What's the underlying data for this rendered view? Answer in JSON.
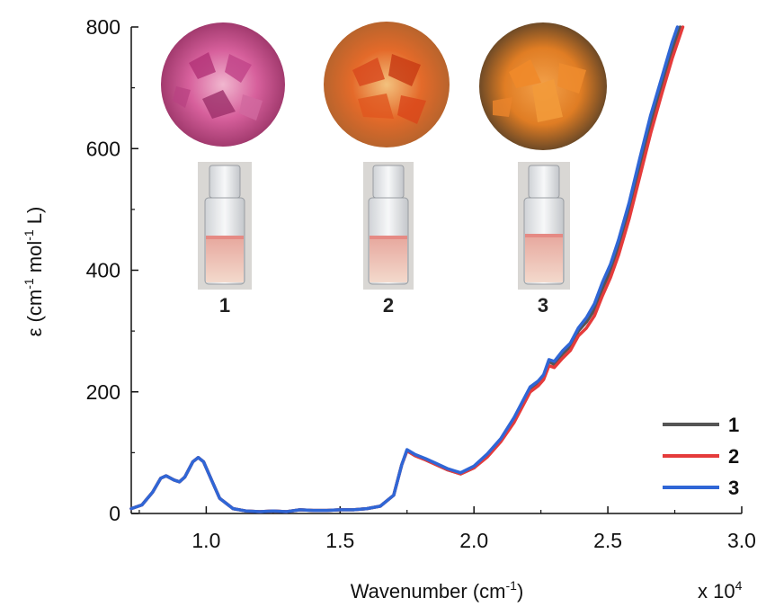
{
  "chart_data": {
    "type": "line",
    "xlabel_text": "Wavenumber (cm",
    "xlabel_sup": "-1",
    "xlabel_close": ")",
    "x_multiplier_text": "x 10",
    "x_multiplier_exp": "4",
    "ylabel_parts": [
      "ε (cm",
      "-1",
      " mol",
      "-1",
      " L)"
    ],
    "xlim": [
      0.72,
      3.0
    ],
    "ylim": [
      0,
      800
    ],
    "x_ticks": [
      1.0,
      1.5,
      2.0,
      2.5,
      3.0
    ],
    "x_tick_labels": [
      "1.0",
      "1.5",
      "2.0",
      "2.5",
      "3.0"
    ],
    "y_ticks": [
      0,
      200,
      400,
      600,
      800
    ],
    "y_tick_labels": [
      "0",
      "200",
      "400",
      "600",
      "800"
    ],
    "legend_placement": "bottom-right",
    "series": [
      {
        "name": "1",
        "color": "#555555",
        "points": [
          [
            0.72,
            8
          ],
          [
            0.76,
            14
          ],
          [
            0.8,
            35
          ],
          [
            0.83,
            58
          ],
          [
            0.85,
            62
          ],
          [
            0.88,
            55
          ],
          [
            0.9,
            52
          ],
          [
            0.92,
            60
          ],
          [
            0.95,
            85
          ],
          [
            0.97,
            92
          ],
          [
            0.99,
            85
          ],
          [
            1.02,
            55
          ],
          [
            1.05,
            25
          ],
          [
            1.1,
            8
          ],
          [
            1.15,
            4
          ],
          [
            1.2,
            3
          ],
          [
            1.25,
            4
          ],
          [
            1.3,
            3
          ],
          [
            1.35,
            6
          ],
          [
            1.4,
            5
          ],
          [
            1.45,
            5
          ],
          [
            1.5,
            6
          ],
          [
            1.55,
            6
          ],
          [
            1.6,
            8
          ],
          [
            1.65,
            12
          ],
          [
            1.7,
            30
          ],
          [
            1.73,
            80
          ],
          [
            1.75,
            103
          ],
          [
            1.78,
            95
          ],
          [
            1.82,
            88
          ],
          [
            1.86,
            80
          ],
          [
            1.9,
            72
          ],
          [
            1.95,
            65
          ],
          [
            2.0,
            75
          ],
          [
            2.05,
            95
          ],
          [
            2.1,
            120
          ],
          [
            2.15,
            155
          ],
          [
            2.18,
            180
          ],
          [
            2.21,
            205
          ],
          [
            2.24,
            215
          ],
          [
            2.26,
            225
          ],
          [
            2.28,
            250
          ],
          [
            2.3,
            245
          ],
          [
            2.33,
            262
          ],
          [
            2.36,
            275
          ],
          [
            2.39,
            300
          ],
          [
            2.42,
            315
          ],
          [
            2.45,
            335
          ],
          [
            2.48,
            370
          ],
          [
            2.51,
            400
          ],
          [
            2.54,
            440
          ],
          [
            2.58,
            500
          ],
          [
            2.62,
            570
          ],
          [
            2.66,
            640
          ],
          [
            2.7,
            700
          ],
          [
            2.74,
            760
          ],
          [
            2.77,
            800
          ]
        ]
      },
      {
        "name": "2",
        "color": "#e53b3b",
        "points": [
          [
            0.72,
            8
          ],
          [
            0.76,
            14
          ],
          [
            0.8,
            35
          ],
          [
            0.83,
            58
          ],
          [
            0.85,
            62
          ],
          [
            0.88,
            55
          ],
          [
            0.9,
            52
          ],
          [
            0.92,
            60
          ],
          [
            0.95,
            85
          ],
          [
            0.97,
            92
          ],
          [
            0.99,
            85
          ],
          [
            1.02,
            55
          ],
          [
            1.05,
            25
          ],
          [
            1.1,
            8
          ],
          [
            1.15,
            4
          ],
          [
            1.2,
            3
          ],
          [
            1.25,
            4
          ],
          [
            1.3,
            3
          ],
          [
            1.35,
            6
          ],
          [
            1.4,
            5
          ],
          [
            1.45,
            5
          ],
          [
            1.5,
            6
          ],
          [
            1.55,
            6
          ],
          [
            1.6,
            8
          ],
          [
            1.65,
            12
          ],
          [
            1.7,
            30
          ],
          [
            1.73,
            80
          ],
          [
            1.75,
            103
          ],
          [
            1.78,
            95
          ],
          [
            1.82,
            88
          ],
          [
            1.86,
            80
          ],
          [
            1.9,
            72
          ],
          [
            1.95,
            65
          ],
          [
            2.0,
            75
          ],
          [
            2.05,
            93
          ],
          [
            2.1,
            118
          ],
          [
            2.15,
            150
          ],
          [
            2.18,
            175
          ],
          [
            2.21,
            200
          ],
          [
            2.24,
            210
          ],
          [
            2.26,
            220
          ],
          [
            2.28,
            243
          ],
          [
            2.3,
            240
          ],
          [
            2.33,
            255
          ],
          [
            2.36,
            268
          ],
          [
            2.39,
            292
          ],
          [
            2.42,
            305
          ],
          [
            2.45,
            325
          ],
          [
            2.48,
            358
          ],
          [
            2.51,
            388
          ],
          [
            2.54,
            425
          ],
          [
            2.58,
            485
          ],
          [
            2.62,
            555
          ],
          [
            2.66,
            625
          ],
          [
            2.7,
            688
          ],
          [
            2.74,
            748
          ],
          [
            2.78,
            800
          ]
        ]
      },
      {
        "name": "3",
        "color": "#2f66d6",
        "points": [
          [
            0.72,
            8
          ],
          [
            0.76,
            14
          ],
          [
            0.8,
            35
          ],
          [
            0.83,
            58
          ],
          [
            0.85,
            62
          ],
          [
            0.88,
            55
          ],
          [
            0.9,
            52
          ],
          [
            0.92,
            60
          ],
          [
            0.95,
            85
          ],
          [
            0.97,
            92
          ],
          [
            0.99,
            85
          ],
          [
            1.02,
            55
          ],
          [
            1.05,
            25
          ],
          [
            1.1,
            8
          ],
          [
            1.15,
            4
          ],
          [
            1.2,
            3
          ],
          [
            1.25,
            4
          ],
          [
            1.3,
            3
          ],
          [
            1.35,
            6
          ],
          [
            1.4,
            5
          ],
          [
            1.45,
            5
          ],
          [
            1.5,
            6
          ],
          [
            1.55,
            6
          ],
          [
            1.6,
            8
          ],
          [
            1.65,
            12
          ],
          [
            1.7,
            30
          ],
          [
            1.73,
            80
          ],
          [
            1.75,
            105
          ],
          [
            1.78,
            97
          ],
          [
            1.82,
            90
          ],
          [
            1.86,
            82
          ],
          [
            1.9,
            74
          ],
          [
            1.95,
            67
          ],
          [
            2.0,
            78
          ],
          [
            2.05,
            98
          ],
          [
            2.1,
            123
          ],
          [
            2.15,
            158
          ],
          [
            2.18,
            183
          ],
          [
            2.21,
            208
          ],
          [
            2.24,
            218
          ],
          [
            2.26,
            228
          ],
          [
            2.28,
            253
          ],
          [
            2.3,
            250
          ],
          [
            2.33,
            267
          ],
          [
            2.36,
            280
          ],
          [
            2.39,
            305
          ],
          [
            2.42,
            322
          ],
          [
            2.45,
            345
          ],
          [
            2.48,
            380
          ],
          [
            2.51,
            410
          ],
          [
            2.54,
            450
          ],
          [
            2.58,
            512
          ],
          [
            2.62,
            585
          ],
          [
            2.66,
            655
          ],
          [
            2.7,
            715
          ],
          [
            2.74,
            775
          ],
          [
            2.76,
            800
          ]
        ]
      }
    ],
    "inset_labels": [
      "1",
      "2",
      "3"
    ]
  }
}
